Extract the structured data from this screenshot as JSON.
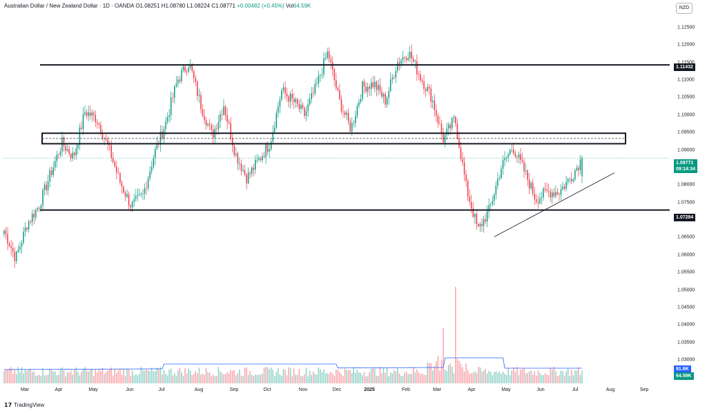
{
  "legend": {
    "symbol": "Australian Dollar / New Zealand Dollar · 1D · OANDA",
    "open": "O1.08251",
    "high": "H1.08780",
    "low": "L1.08224",
    "close": "C1.08771",
    "change": "+0.00482 (+0.45%)",
    "volume_label": "Vol",
    "volume_value": "64.59K"
  },
  "currency": "NZD",
  "price_axis": [
    "1.12500",
    "1.12000",
    "1.11500",
    "1.11000",
    "1.10500",
    "1.10000",
    "1.09500",
    "1.09000",
    "1.08500",
    "1.08000",
    "1.07500",
    "1.07000",
    "1.06500",
    "1.06000",
    "1.05500",
    "1.05000",
    "1.04500",
    "1.04000",
    "1.03500",
    "1.03000"
  ],
  "time_axis": [
    "Mar",
    "Apr",
    "May",
    "Jun",
    "Jul",
    "Aug",
    "Sep",
    "Oct",
    "Nov",
    "Dec",
    "2025",
    "Feb",
    "Mar",
    "Apr",
    "May",
    "Jun",
    "Jul",
    "Aug",
    "Sep"
  ],
  "tags": {
    "resistance": "1.11432",
    "support": "1.07284",
    "last_price": "1.08771",
    "countdown": "09:14:34",
    "vol_ma": "91.6K",
    "vol_last": "64.59K"
  },
  "colors": {
    "up": "#089981",
    "down": "#f23645",
    "line": "#131722",
    "ma": "#2962ff"
  },
  "footer": {
    "brand": "TradingView",
    "logo_icon": "tradingview-logo-icon"
  },
  "chart_data": {
    "type": "candlestick",
    "title": "Australian Dollar / New Zealand Dollar · 1D · OANDA",
    "ylim": [
      1.025,
      1.126
    ],
    "resistance_level": 1.11432,
    "support_level": 1.07284,
    "zone": [
      1.0918,
      1.0948
    ],
    "last_close": 1.08771,
    "path_points": [
      [
        "Feb",
        1.067
      ],
      [
        "Mar",
        1.059
      ],
      [
        "Mar",
        1.069
      ],
      [
        "Mar",
        1.074
      ],
      [
        "Apr",
        1.083
      ],
      [
        "Apr",
        1.092
      ],
      [
        "Apr",
        1.088
      ],
      [
        "May",
        1.101
      ],
      [
        "May",
        1.099
      ],
      [
        "May",
        1.091
      ],
      [
        "Jun",
        1.081
      ],
      [
        "Jun",
        1.074
      ],
      [
        "Jun",
        1.077
      ],
      [
        "Jul",
        1.089
      ],
      [
        "Jul",
        1.098
      ],
      [
        "Jul",
        1.11
      ],
      [
        "Jul",
        1.115
      ],
      [
        "Aug",
        1.103
      ],
      [
        "Aug",
        1.094
      ],
      [
        "Aug",
        1.103
      ],
      [
        "Sep",
        1.089
      ],
      [
        "Sep",
        1.082
      ],
      [
        "Sep",
        1.087
      ],
      [
        "Oct",
        1.092
      ],
      [
        "Oct",
        1.107
      ],
      [
        "Oct",
        1.104
      ],
      [
        "Nov",
        1.1
      ],
      [
        "Nov",
        1.108
      ],
      [
        "Nov",
        1.118
      ],
      [
        "Dec",
        1.104
      ],
      [
        "Dec",
        1.096
      ],
      [
        "Dec",
        1.108
      ],
      [
        "2025",
        1.109
      ],
      [
        "2025",
        1.104
      ],
      [
        "Feb",
        1.115
      ],
      [
        "Feb",
        1.118
      ],
      [
        "Feb",
        1.111
      ],
      [
        "Mar",
        1.105
      ],
      [
        "Mar",
        1.093
      ],
      [
        "Mar",
        1.099
      ],
      [
        "Apr",
        1.079
      ],
      [
        "Apr",
        1.067
      ],
      [
        "Apr",
        1.073
      ],
      [
        "May",
        1.085
      ],
      [
        "May",
        1.091
      ],
      [
        "May",
        1.084
      ],
      [
        "Jun",
        1.076
      ],
      [
        "Jun",
        1.078
      ],
      [
        "Jun",
        1.078
      ],
      [
        "Jul",
        1.082
      ],
      [
        "Jul",
        1.0877
      ]
    ],
    "trendline": [
      [
        1.0652
      ],
      [
        1.0835
      ]
    ]
  }
}
